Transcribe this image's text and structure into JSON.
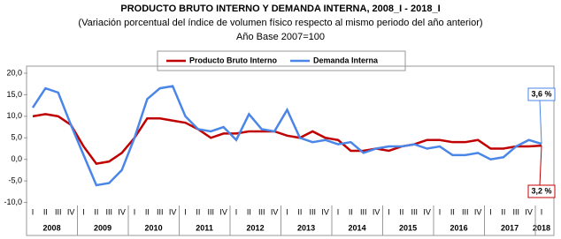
{
  "chart_data": {
    "type": "line",
    "title": "PRODUCTO BRUTO INTERNO Y DEMANDA INTERNA, 2008_I - 2018_I",
    "subtitle": "(Variación porcentual del índice de volumen físico respecto al mismo periodo del año anterior)",
    "note": "Año Base 2007=100",
    "categories": [
      "I",
      "II",
      "III",
      "IV",
      "I",
      "II",
      "III",
      "IV",
      "I",
      "II",
      "III",
      "IV",
      "I",
      "II",
      "III",
      "IV",
      "I",
      "II",
      "III",
      "IV",
      "I",
      "II",
      "III",
      "IV",
      "I",
      "II",
      "III",
      "IV",
      "I",
      "II",
      "III",
      "IV",
      "I",
      "II",
      "III",
      "IV",
      "I",
      "II",
      "III",
      "IV",
      "I"
    ],
    "year_labels": [
      "2008",
      "2009",
      "2010",
      "2011",
      "2012",
      "2013",
      "2014",
      "2015",
      "2016",
      "2017",
      "2018"
    ],
    "ylim": [
      -15,
      20
    ],
    "yticks": [
      {
        "value": -10,
        "label": "-10,0"
      },
      {
        "value": -5,
        "label": "-5,0"
      },
      {
        "value": 0,
        "label": "0,0"
      },
      {
        "value": 5,
        "label": "5,0"
      },
      {
        "value": 10,
        "label": "10,0"
      },
      {
        "value": 15,
        "label": "15,0"
      },
      {
        "value": 20,
        "label": "20,0"
      }
    ],
    "series": [
      {
        "name": "Producto Bruto Interno",
        "color": "#c00000",
        "end_label": "3,2 %",
        "values": [
          10,
          10.5,
          10,
          8,
          3,
          -1,
          -0.5,
          1.5,
          5,
          9.5,
          9.5,
          9,
          8.5,
          7,
          5,
          6,
          6,
          6.5,
          6.5,
          6.5,
          5.5,
          5,
          6.5,
          5,
          4.5,
          2,
          2,
          2.5,
          2,
          3,
          3.5,
          4.5,
          4.5,
          4,
          4,
          4.5,
          2.5,
          2.5,
          3,
          3,
          3.2
        ]
      },
      {
        "name": "Demanda Interna",
        "color": "#4a86e8",
        "end_label": "3,6 %",
        "values": [
          12,
          16.5,
          15.5,
          8,
          1,
          -6,
          -5.5,
          -2.5,
          5,
          14,
          16.5,
          17,
          10,
          7,
          6.5,
          7.5,
          4.5,
          10.5,
          7,
          6.5,
          11.5,
          5,
          4,
          4.5,
          3.5,
          4,
          1.5,
          2.5,
          3,
          3,
          3.5,
          2.5,
          3,
          1,
          1,
          1.5,
          0,
          0.5,
          3,
          4.5,
          3.6
        ]
      }
    ]
  }
}
